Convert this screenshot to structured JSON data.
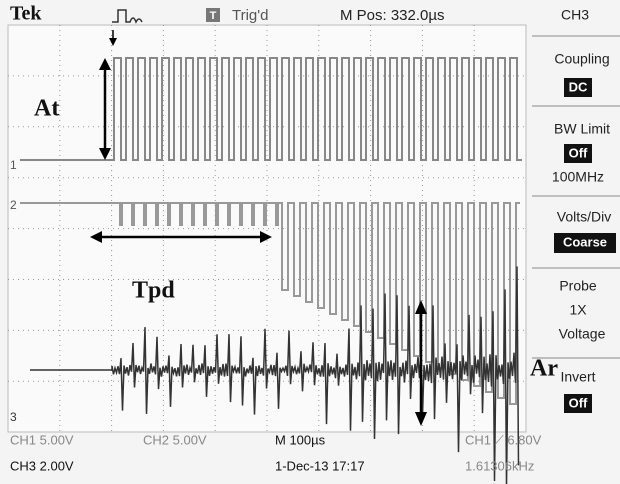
{
  "header": {
    "brand": "Tek",
    "trigger_state": "Trig'd",
    "position": "M Pos: 332.0µs",
    "channel": "CH3"
  },
  "menu": {
    "coupling_label": "Coupling",
    "coupling_value": "DC",
    "bw_label": "BW Limit",
    "bw_value": "Off",
    "bw_freq": "100MHz",
    "volts_label": "Volts/Div",
    "volts_value": "Coarse",
    "probe_label": "Probe",
    "probe_factor": "1X",
    "probe_type": "Voltage",
    "invert_label": "Invert",
    "invert_value": "Off"
  },
  "footer": {
    "ch1": "CH1  5.00V",
    "ch2": "CH2  5.00V",
    "timebase": "M 100µs",
    "trigger": "CH1 ⟋ 6.80V",
    "ch3": "CH3  2.00V",
    "date": "1-Dec-13 17:17",
    "frequency": "1.61306kHz"
  },
  "annotations": {
    "at": "At",
    "tpd": "Tpd",
    "ar": "Ar"
  },
  "markers": {
    "ch1": "1",
    "ch2": "2",
    "ch3": "3",
    "trigger": "T"
  }
}
